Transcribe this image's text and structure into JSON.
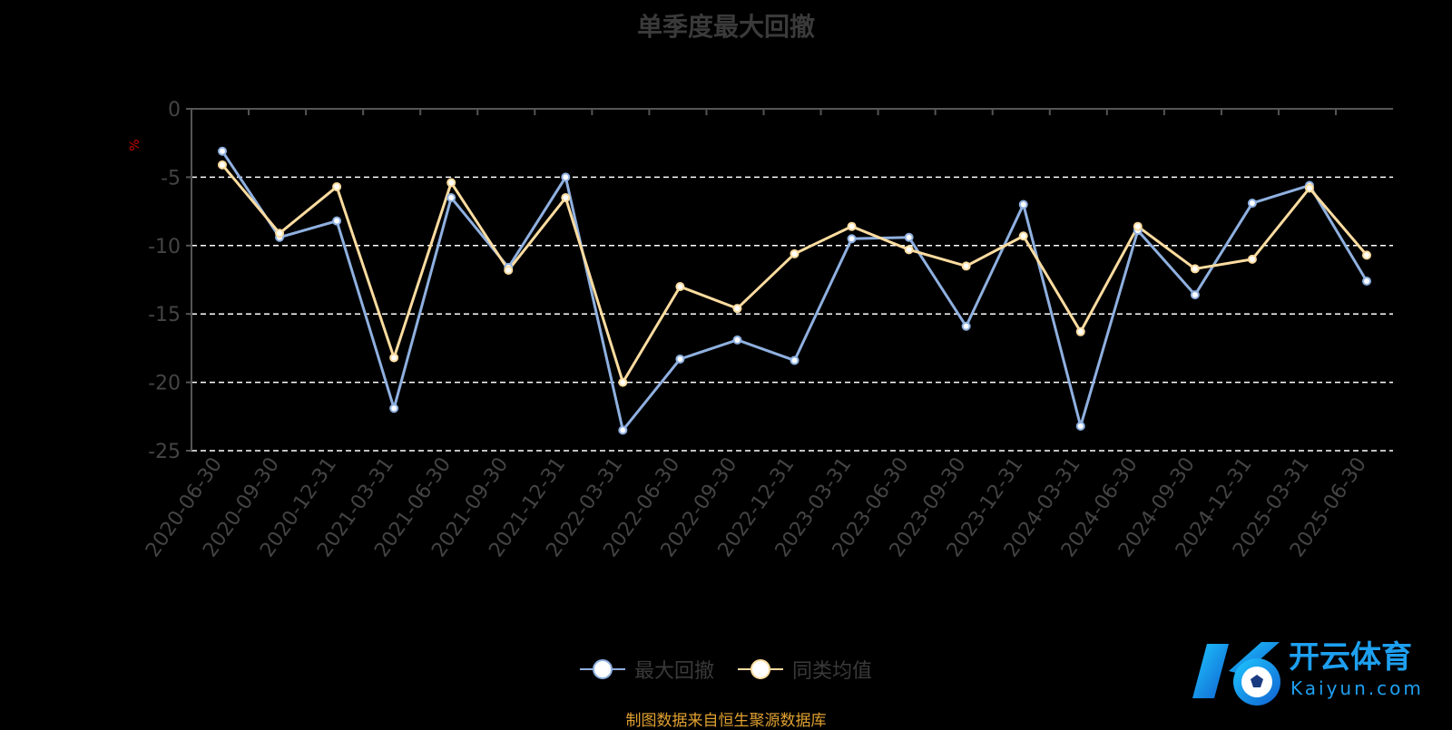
{
  "colors": {
    "series_1": "#8fb0e0",
    "series_2": "#fcdca0",
    "axis": "#555555",
    "grid": "#ffffff",
    "title": "#3a3a3a",
    "tick_label": "#444444",
    "unit": "#cc0000",
    "source": "#e0a030"
  },
  "chart_data": {
    "type": "line",
    "title": "单季度最大回撤",
    "ylabel": "%",
    "ylim": [
      -25,
      0
    ],
    "yticks": [
      0,
      -5,
      -10,
      -15,
      -20,
      -25
    ],
    "grid": true,
    "legend_position": "bottom",
    "categories": [
      "2020-06-30",
      "2020-09-30",
      "2020-12-31",
      "2021-03-31",
      "2021-06-30",
      "2021-09-30",
      "2021-12-31",
      "2022-03-31",
      "2022-06-30",
      "2022-09-30",
      "2022-12-31",
      "2023-03-31",
      "2023-06-30",
      "2023-09-30",
      "2023-12-31",
      "2024-03-31",
      "2024-06-30",
      "2024-09-30",
      "2024-12-31",
      "2025-03-31",
      "2025-06-30"
    ],
    "series": [
      {
        "name": "最大回撤",
        "values": [
          -3.1,
          -9.4,
          -8.2,
          -21.9,
          -6.5,
          -11.6,
          -5.0,
          -23.5,
          -18.3,
          -16.9,
          -18.4,
          -9.5,
          -9.4,
          -15.9,
          -7.0,
          -23.2,
          -8.9,
          -13.6,
          -6.9,
          -5.6,
          -12.6
        ]
      },
      {
        "name": "同类均值",
        "values": [
          -4.1,
          -9.1,
          -5.7,
          -18.2,
          -5.4,
          -11.8,
          -6.5,
          -20.0,
          -13.0,
          -14.6,
          -10.6,
          -8.6,
          -10.3,
          -11.5,
          -9.3,
          -16.3,
          -8.6,
          -11.7,
          -11.0,
          -5.8,
          -10.7
        ]
      }
    ]
  },
  "source_text": "制图数据来自恒生聚源数据库",
  "watermark": {
    "icon": "kaiyun-logo-icon",
    "name": "开云体育",
    "url": "Kaiyun.com"
  }
}
